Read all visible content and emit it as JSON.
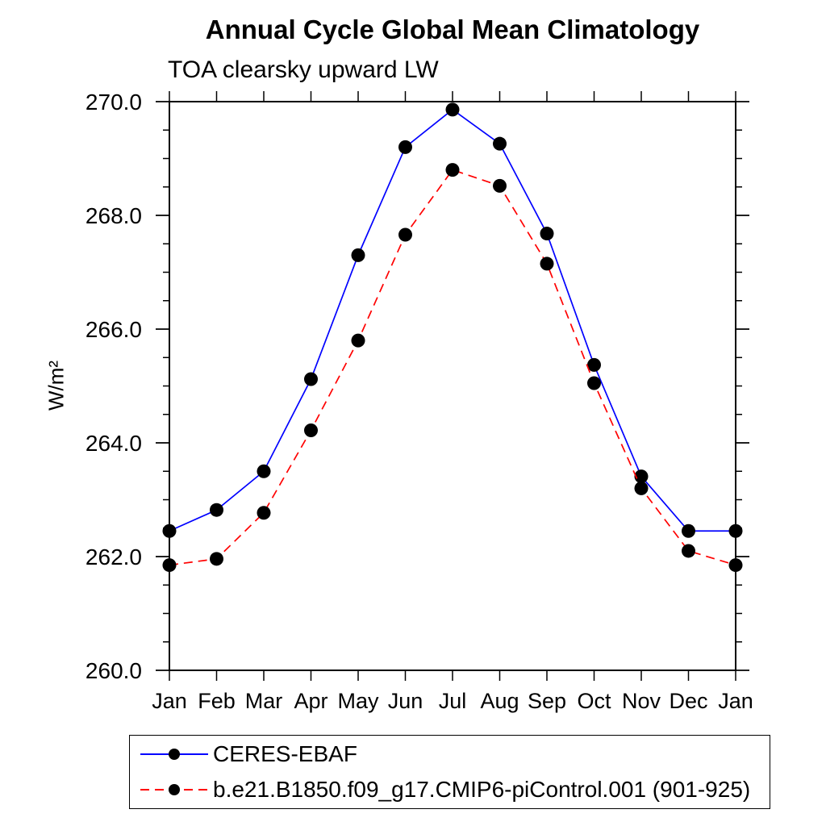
{
  "header": {
    "title": "Annual Cycle Global Mean Climatology",
    "subtitle": "TOA clearsky upward LW"
  },
  "chart_data": {
    "type": "line",
    "title": "Annual Cycle Global Mean Climatology",
    "subtitle": "TOA clearsky upward LW",
    "xlabel": "",
    "ylabel": "W/m²",
    "x_categories": [
      "Jan",
      "Feb",
      "Mar",
      "Apr",
      "May",
      "Jun",
      "Jul",
      "Aug",
      "Sep",
      "Oct",
      "Nov",
      "Dec",
      "Jan"
    ],
    "ylim": [
      260.0,
      270.0
    ],
    "yticks": [
      {
        "value": 260.0,
        "label": "260.0"
      },
      {
        "value": 262.0,
        "label": "262.0"
      },
      {
        "value": 264.0,
        "label": "264.0"
      },
      {
        "value": 266.0,
        "label": "266.0"
      },
      {
        "value": 268.0,
        "label": "268.0"
      },
      {
        "value": 270.0,
        "label": "270.0"
      }
    ],
    "ytick_minor_interval": 0.5,
    "grid": false,
    "legend_position": "bottom-left-box",
    "frame_color": "#000000",
    "marker_color": "#000000",
    "series": [
      {
        "name": "CERES-EBAF",
        "color": "#0000ff",
        "line_style": "solid",
        "marker": "filled-circle",
        "values": [
          262.45,
          262.82,
          263.5,
          265.12,
          267.3,
          269.2,
          269.86,
          269.26,
          267.68,
          265.37,
          263.41,
          262.45,
          262.45
        ]
      },
      {
        "name": "b.e21.B1850.f09_g17.CMIP6-piControl.001 (901-925)",
        "color": "#ff0000",
        "line_style": "dashed",
        "marker": "filled-circle",
        "values": [
          261.85,
          261.96,
          262.77,
          264.22,
          265.8,
          267.66,
          268.8,
          268.52,
          267.15,
          265.05,
          263.2,
          262.1,
          261.85
        ]
      }
    ]
  }
}
